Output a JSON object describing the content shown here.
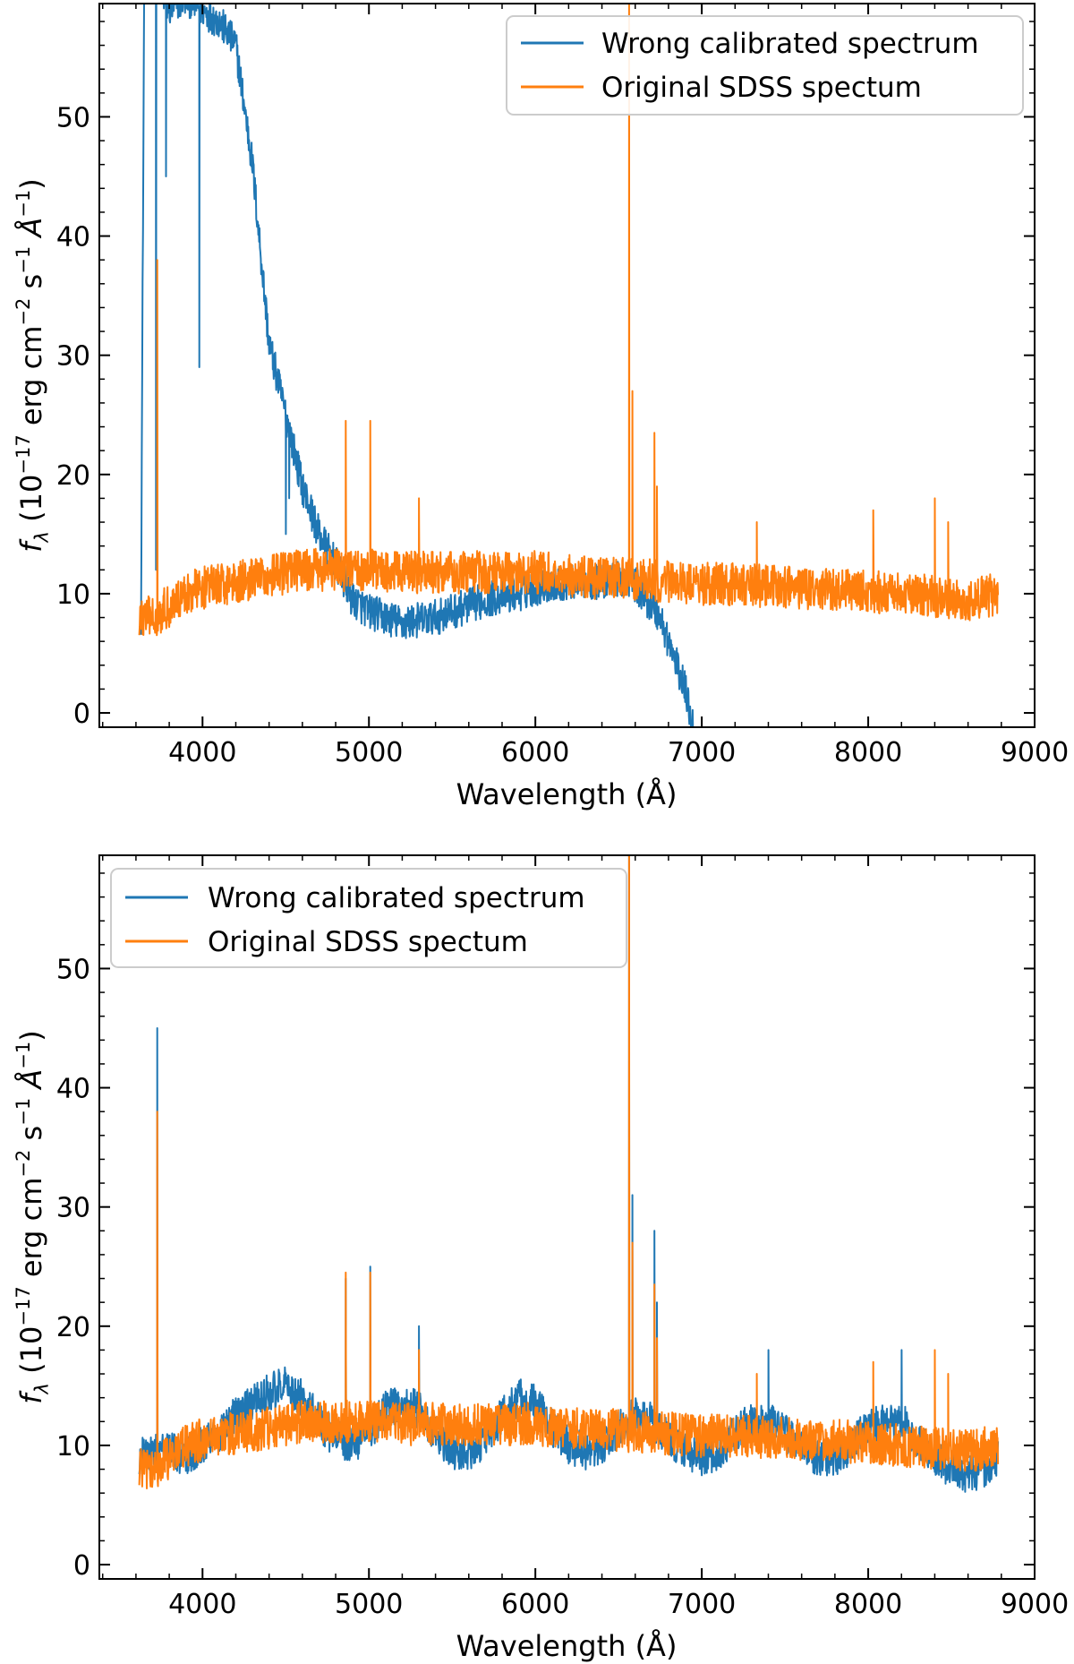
{
  "chart_data": [
    {
      "type": "line",
      "panel": "top",
      "title": "",
      "xlabel": "Wavelength (Å)",
      "ylabel": "f_λ (10^−17 erg cm^−2 s^−1 Å^−1)",
      "ylabel_parts": {
        "f": "f",
        "sub": "λ",
        "open": "(10",
        "exp17": "−17",
        "erg": " erg cm",
        "exp2": "−2",
        "s": " s",
        "exp1": "−1",
        "ang": " Å",
        "close": ")"
      },
      "xlim": [
        3380,
        9000
      ],
      "ylim": [
        -1.2,
        59.5
      ],
      "xticks": [
        4000,
        5000,
        6000,
        7000,
        8000,
        9000
      ],
      "yticks": [
        0,
        10,
        20,
        30,
        40,
        50
      ],
      "legend_position": "top-right",
      "series": [
        {
          "name": "Wrong calibrated spectrum",
          "color": "#1f77b4",
          "points": [
            [
              3630,
              8
            ],
            [
              3650,
              62
            ],
            [
              3700,
              62
            ],
            [
              3800,
              59
            ],
            [
              3900,
              60
            ],
            [
              4000,
              59
            ],
            [
              4100,
              58
            ],
            [
              4200,
              56
            ],
            [
              4300,
              46
            ],
            [
              4400,
              31
            ],
            [
              4500,
              25
            ],
            [
              4600,
              19
            ],
            [
              4700,
              15
            ],
            [
              4800,
              12.5
            ],
            [
              4900,
              9.5
            ],
            [
              5000,
              8.5
            ],
            [
              5100,
              8
            ],
            [
              5200,
              7.5
            ],
            [
              5300,
              7.8
            ],
            [
              5400,
              8
            ],
            [
              5500,
              8.5
            ],
            [
              5600,
              9
            ],
            [
              5700,
              9.5
            ],
            [
              5800,
              9.8
            ],
            [
              5900,
              10
            ],
            [
              6000,
              10.5
            ],
            [
              6100,
              10.8
            ],
            [
              6200,
              11
            ],
            [
              6300,
              11
            ],
            [
              6400,
              11
            ],
            [
              6500,
              11.2
            ],
            [
              6560,
              11.2
            ],
            [
              6600,
              10.8
            ],
            [
              6700,
              9
            ],
            [
              6750,
              8
            ],
            [
              6800,
              6
            ],
            [
              6850,
              4
            ],
            [
              6900,
              2
            ],
            [
              6950,
              -1.2
            ]
          ],
          "spikes": [
            [
              3720,
              12
            ],
            [
              3780,
              45
            ],
            [
              3980,
              29
            ],
            [
              4500,
              15
            ],
            [
              4520,
              18
            ]
          ],
          "noise": 1.5
        },
        {
          "name": "Original SDSS spectum",
          "color": "#ff7f0e",
          "points": [
            [
              3620,
              8
            ],
            [
              3700,
              8
            ],
            [
              3800,
              9
            ],
            [
              3900,
              10
            ],
            [
              4000,
              10.5
            ],
            [
              4200,
              11
            ],
            [
              4400,
              11.5
            ],
            [
              4600,
              12
            ],
            [
              4800,
              12
            ],
            [
              5000,
              12
            ],
            [
              5200,
              11.8
            ],
            [
              5400,
              11.8
            ],
            [
              5600,
              11.8
            ],
            [
              5800,
              11.8
            ],
            [
              6000,
              11.8
            ],
            [
              6200,
              11.5
            ],
            [
              6400,
              11.3
            ],
            [
              6600,
              11.2
            ],
            [
              6800,
              11
            ],
            [
              7000,
              10.8
            ],
            [
              7200,
              10.8
            ],
            [
              7400,
              10.6
            ],
            [
              7600,
              10.5
            ],
            [
              7800,
              10.4
            ],
            [
              8000,
              10.2
            ],
            [
              8200,
              10
            ],
            [
              8400,
              9.8
            ],
            [
              8600,
              9.5
            ],
            [
              8780,
              10
            ]
          ],
          "spikes": [
            [
              3728,
              38
            ],
            [
              4861,
              24.5
            ],
            [
              5007,
              24.5
            ],
            [
              5300,
              18
            ],
            [
              6563,
              62
            ],
            [
              6583,
              27
            ],
            [
              6716,
              23.5
            ],
            [
              6731,
              19
            ],
            [
              7330,
              16
            ],
            [
              8030,
              17
            ],
            [
              8400,
              18
            ],
            [
              8480,
              16
            ]
          ],
          "noise": 1.8
        }
      ]
    },
    {
      "type": "line",
      "panel": "bottom",
      "title": "",
      "xlabel": "Wavelength (Å)",
      "ylabel": "f_λ (10^−17 erg cm^−2 s^−1 Å^−1)",
      "ylabel_parts": {
        "f": "f",
        "sub": "λ",
        "open": "(10",
        "exp17": "−17",
        "erg": " erg cm",
        "exp2": "−2",
        "s": " s",
        "exp1": "−1",
        "ang": " Å",
        "close": ")"
      },
      "xlim": [
        3380,
        9000
      ],
      "ylim": [
        -1.2,
        59.5
      ],
      "xticks": [
        4000,
        5000,
        6000,
        7000,
        8000,
        9000
      ],
      "yticks": [
        0,
        10,
        20,
        30,
        40,
        50
      ],
      "legend_position": "top-left",
      "series": [
        {
          "name": "Wrong calibrated spectrum",
          "color": "#1f77b4",
          "points": [
            [
              3620,
              9
            ],
            [
              3700,
              9.5
            ],
            [
              3800,
              9.5
            ],
            [
              3900,
              9
            ],
            [
              4000,
              10
            ],
            [
              4100,
              11
            ],
            [
              4200,
              12.5
            ],
            [
              4300,
              13.5
            ],
            [
              4400,
              14.5
            ],
            [
              4500,
              15
            ],
            [
              4600,
              14
            ],
            [
              4700,
              12
            ],
            [
              4800,
              10.5
            ],
            [
              4900,
              10
            ],
            [
              5000,
              11
            ],
            [
              5100,
              13
            ],
            [
              5200,
              13.5
            ],
            [
              5300,
              13
            ],
            [
              5400,
              11
            ],
            [
              5500,
              9.5
            ],
            [
              5600,
              9.5
            ],
            [
              5700,
              10.5
            ],
            [
              5800,
              12.5
            ],
            [
              5900,
              14
            ],
            [
              6000,
              13.5
            ],
            [
              6100,
              11.5
            ],
            [
              6200,
              10
            ],
            [
              6300,
              9.5
            ],
            [
              6400,
              10
            ],
            [
              6500,
              11.5
            ],
            [
              6600,
              12.5
            ],
            [
              6700,
              12
            ],
            [
              6800,
              10.5
            ],
            [
              6900,
              9.5
            ],
            [
              7000,
              9
            ],
            [
              7100,
              9.5
            ],
            [
              7200,
              11
            ],
            [
              7300,
              12
            ],
            [
              7400,
              12
            ],
            [
              7500,
              11
            ],
            [
              7600,
              10
            ],
            [
              7700,
              9
            ],
            [
              7800,
              9
            ],
            [
              7900,
              10
            ],
            [
              8000,
              11.5
            ],
            [
              8100,
              12
            ],
            [
              8200,
              12
            ],
            [
              8300,
              10.5
            ],
            [
              8400,
              9
            ],
            [
              8500,
              8
            ],
            [
              8600,
              7.5
            ],
            [
              8700,
              8
            ],
            [
              8780,
              9
            ]
          ],
          "spikes": [
            [
              3728,
              45
            ],
            [
              4861,
              24
            ],
            [
              5007,
              25
            ],
            [
              5300,
              20
            ],
            [
              6563,
              60
            ],
            [
              6583,
              31
            ],
            [
              6716,
              28
            ],
            [
              6731,
              22
            ],
            [
              7400,
              18
            ],
            [
              8200,
              18
            ]
          ],
          "noise": 1.6
        },
        {
          "name": "Original SDSS spectum",
          "color": "#ff7f0e",
          "points": [
            [
              3620,
              8
            ],
            [
              3700,
              8
            ],
            [
              3800,
              9
            ],
            [
              3900,
              10
            ],
            [
              4000,
              10.5
            ],
            [
              4200,
              11
            ],
            [
              4400,
              11.5
            ],
            [
              4600,
              12
            ],
            [
              4800,
              12
            ],
            [
              5000,
              12
            ],
            [
              5200,
              11.8
            ],
            [
              5400,
              11.8
            ],
            [
              5600,
              11.8
            ],
            [
              5800,
              11.8
            ],
            [
              6000,
              11.8
            ],
            [
              6200,
              11.5
            ],
            [
              6400,
              11.3
            ],
            [
              6600,
              11.2
            ],
            [
              6800,
              11
            ],
            [
              7000,
              10.8
            ],
            [
              7200,
              10.8
            ],
            [
              7400,
              10.6
            ],
            [
              7600,
              10.5
            ],
            [
              7800,
              10.4
            ],
            [
              8000,
              10.2
            ],
            [
              8200,
              10
            ],
            [
              8400,
              9.8
            ],
            [
              8600,
              9.5
            ],
            [
              8780,
              10
            ]
          ],
          "spikes": [
            [
              3728,
              38
            ],
            [
              4861,
              24.5
            ],
            [
              5007,
              24.5
            ],
            [
              5300,
              18
            ],
            [
              6563,
              62
            ],
            [
              6583,
              27
            ],
            [
              6716,
              23.5
            ],
            [
              6731,
              19
            ],
            [
              7330,
              16
            ],
            [
              8030,
              17
            ],
            [
              8400,
              18
            ],
            [
              8480,
              16
            ]
          ],
          "noise": 1.8
        }
      ]
    }
  ]
}
